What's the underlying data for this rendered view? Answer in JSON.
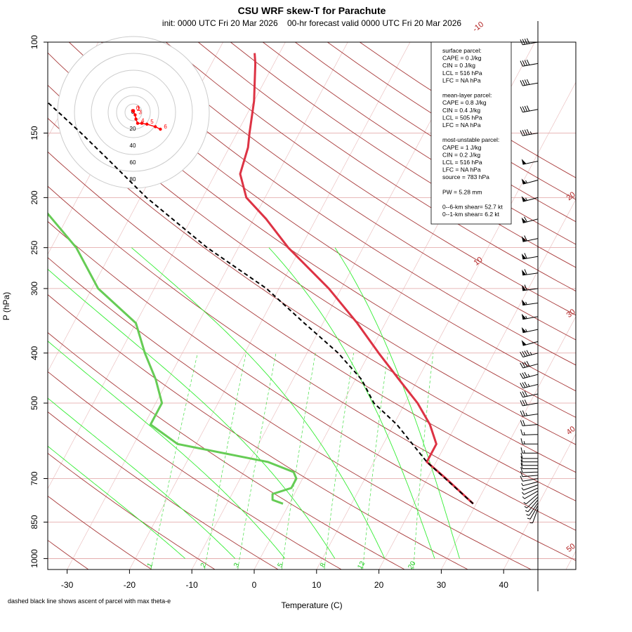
{
  "chart_data": {
    "type": "skew-t",
    "title": "CSU WRF skew-T for Parachute",
    "subtitle": "init: 0000 UTC Fri 20 Mar 2026    00-hr forecast valid 0000 UTC Fri 20 Mar 2026",
    "xlabel": "Temperature (C)",
    "ylabel": "P (hPa)",
    "xlim": [
      -33,
      45
    ],
    "ylim": [
      1050,
      100
    ],
    "x_ticks": [
      -30,
      -20,
      -10,
      0,
      10,
      20,
      30,
      40
    ],
    "y_ticks": [
      100,
      150,
      200,
      250,
      300,
      400,
      500,
      700,
      850,
      1000
    ],
    "isotherm_labels": [
      -10,
      0,
      10,
      20,
      30,
      40,
      50
    ],
    "mixing_ratio_labels": [
      "1",
      "2",
      "3",
      "5",
      "8",
      "12",
      "20"
    ],
    "footnote": "dashed black line shows ascent of parcel with max theta-e",
    "series": [
      {
        "role": "temperature",
        "color": "#dd3344",
        "values": [
          [
            783,
            29.5
          ],
          [
            700,
            23
          ],
          [
            650,
            18.5
          ],
          [
            600,
            18.5
          ],
          [
            550,
            15.8
          ],
          [
            500,
            12
          ],
          [
            450,
            7
          ],
          [
            400,
            1.5
          ],
          [
            350,
            -4.5
          ],
          [
            300,
            -12
          ],
          [
            250,
            -22
          ],
          [
            220,
            -28
          ],
          [
            200,
            -33
          ],
          [
            180,
            -36
          ],
          [
            160,
            -37
          ],
          [
            150,
            -38
          ],
          [
            130,
            -40
          ],
          [
            110,
            -43
          ],
          [
            105,
            -44
          ]
        ]
      },
      {
        "role": "dewpoint",
        "color": "#66cc55",
        "values": [
          [
            783,
            -1
          ],
          [
            770,
            -3
          ],
          [
            750,
            -3.5
          ],
          [
            730,
            -1
          ],
          [
            700,
            -1
          ],
          [
            680,
            -2
          ],
          [
            650,
            -7
          ],
          [
            600,
            -23
          ],
          [
            550,
            -29
          ],
          [
            520,
            -29
          ],
          [
            500,
            -29
          ],
          [
            450,
            -32
          ],
          [
            400,
            -36
          ],
          [
            350,
            -40
          ],
          [
            300,
            -49
          ],
          [
            250,
            -56
          ],
          [
            200,
            -67
          ],
          [
            170,
            -72
          ],
          [
            160,
            -74
          ]
        ]
      },
      {
        "role": "parcel",
        "color": "#000000",
        "values": [
          [
            783,
            29.5
          ],
          [
            650,
            18.5
          ],
          [
            550,
            10.5
          ],
          [
            500,
            5
          ],
          [
            450,
            1
          ],
          [
            400,
            -5
          ],
          [
            350,
            -13
          ],
          [
            300,
            -22
          ],
          [
            250,
            -35
          ],
          [
            200,
            -49
          ],
          [
            170,
            -58
          ],
          [
            150,
            -65
          ],
          [
            120,
            -78
          ],
          [
            100,
            -88
          ]
        ]
      }
    ],
    "wind_barbs": {
      "color": "#000000",
      "p": [
        800,
        790,
        780,
        770,
        760,
        750,
        740,
        730,
        720,
        710,
        700,
        690,
        680,
        670,
        660,
        650,
        640,
        625,
        600,
        575,
        550,
        525,
        500,
        480,
        460,
        440,
        420,
        400,
        380,
        360,
        340,
        320,
        300,
        280,
        260,
        240,
        220,
        200,
        185,
        170,
        150,
        135,
        120,
        110,
        100
      ],
      "speed_kt": [
        3,
        5,
        5,
        5,
        5,
        5,
        5,
        5,
        5,
        5,
        10,
        10,
        10,
        10,
        10,
        10,
        10,
        15,
        15,
        15,
        20,
        25,
        30,
        30,
        35,
        35,
        40,
        45,
        50,
        55,
        55,
        55,
        60,
        60,
        60,
        60,
        60,
        55,
        55,
        50,
        45,
        40,
        40,
        40,
        40
      ],
      "dir_deg": [
        200,
        210,
        215,
        220,
        225,
        230,
        240,
        245,
        250,
        255,
        260,
        265,
        268,
        270,
        270,
        270,
        270,
        270,
        270,
        268,
        265,
        262,
        260,
        258,
        256,
        255,
        255,
        255,
        255,
        258,
        260,
        262,
        262,
        262,
        260,
        258,
        255,
        255,
        255,
        258,
        260,
        260,
        260,
        260,
        260
      ]
    },
    "hodograph": {
      "ring_labels": [
        "0",
        "20",
        "40",
        "60",
        "80"
      ],
      "u": [
        -1,
        0,
        0,
        2,
        3,
        5,
        10,
        16,
        26,
        32
      ],
      "v": [
        2,
        2,
        1,
        -3,
        -8,
        -13,
        -13,
        -14,
        -17,
        -20
      ],
      "point_labels": [
        "0",
        "1",
        "2",
        "3",
        "4",
        "5",
        "6"
      ],
      "color": "#ff0000"
    },
    "info_box": [
      "surface parcel:",
      "CAPE = 0 J/kg",
      "CIN = 0 J/kg",
      "LCL = 516 hPa",
      "LFC = NA hPa",
      "",
      "mean-layer parcel:",
      "CAPE = 0.8 J/kg",
      "CIN = 0.4 J/kg",
      "LCL = 505 hPa",
      "LFC = NA hPa",
      "",
      "most-unstable parcel:",
      "CAPE = 1 J/kg",
      "CIN = 0.2 J/kg",
      "LCL = 516 hPa",
      "LFC = NA hPa",
      "source = 783 hPa",
      "",
      "PW =  5.28 mm",
      "",
      "0--6-km shear= 52.7 kt",
      "0--1-km shear= 6.2 kt"
    ]
  }
}
